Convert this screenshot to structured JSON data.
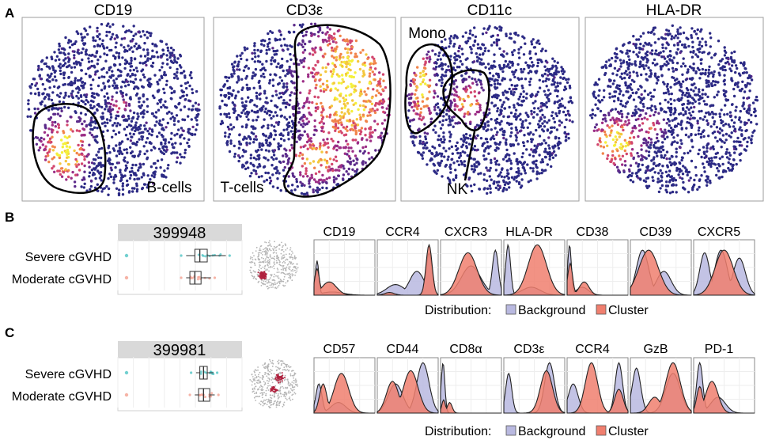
{
  "panels": {
    "A": {
      "letter": "A",
      "tsne": [
        {
          "marker": "CD19",
          "gate_labels": [
            "B-cells"
          ]
        },
        {
          "marker": "CD3ε",
          "gate_labels": [
            "T-cells"
          ]
        },
        {
          "marker": "CD11c",
          "gate_labels": [
            "Mono",
            "NK"
          ]
        },
        {
          "marker": "HLA-DR",
          "gate_labels": []
        }
      ]
    },
    "B": {
      "letter": "B",
      "cluster_id": "399948",
      "groups": [
        "Severe cGVHD",
        "Moderate cGVHD"
      ],
      "markers": [
        "CD19",
        "CCR4",
        "CXCR3",
        "HLA-DR",
        "CD38",
        "CD39",
        "CXCR5"
      ]
    },
    "C": {
      "letter": "C",
      "cluster_id": "399981",
      "groups": [
        "Severe cGVHD",
        "Moderate cGVHD"
      ],
      "markers": [
        "CD57",
        "CD44",
        "CD8α",
        "CD3ε",
        "CCR4",
        "GzB",
        "PD-1"
      ]
    }
  },
  "legend": {
    "title": "Distribution:",
    "items": [
      "Background",
      "Cluster"
    ]
  },
  "colors": {
    "background_fill": "#b9b9e0",
    "cluster_fill": "#f07f6f",
    "severe": "#4fc4c4",
    "moderate": "#f4a090",
    "low_expression": "#2c2a85",
    "high_expression": "#f4f03a"
  },
  "chart_data": [
    {
      "type": "area",
      "title": "399948",
      "panel": "B",
      "x_description": "relative marker expression (0 to 1)",
      "series": [
        {
          "name": "CD19",
          "background": [
            [
              0.05,
              0.65,
              0.03
            ],
            [
              0.3,
              0.06,
              0.18
            ]
          ],
          "cluster": [
            [
              0.05,
              0.5,
              0.04
            ],
            [
              0.25,
              0.25,
              0.12
            ]
          ]
        },
        {
          "name": "CCR4",
          "background": [
            [
              0.3,
              0.2,
              0.15
            ],
            [
              0.65,
              0.45,
              0.12
            ],
            [
              0.85,
              0.8,
              0.05
            ]
          ],
          "cluster": [
            [
              0.2,
              0.05,
              0.08
            ],
            [
              0.85,
              0.95,
              0.05
            ]
          ]
        },
        {
          "name": "CXCR3",
          "background": [
            [
              0.5,
              0.55,
              0.16
            ],
            [
              0.9,
              0.85,
              0.05
            ]
          ],
          "cluster": [
            [
              0.45,
              0.8,
              0.15
            ]
          ]
        },
        {
          "name": "HLA-DR",
          "background": [
            [
              0.07,
              0.95,
              0.04
            ],
            [
              0.45,
              0.15,
              0.15
            ]
          ],
          "cluster": [
            [
              0.55,
              0.95,
              0.15
            ]
          ]
        },
        {
          "name": "CD38",
          "background": [
            [
              0.04,
              0.95,
              0.03
            ],
            [
              0.25,
              0.15,
              0.1
            ]
          ],
          "cluster": [
            [
              0.05,
              0.6,
              0.04
            ],
            [
              0.28,
              0.25,
              0.08
            ]
          ]
        },
        {
          "name": "CD39",
          "background": [
            [
              0.2,
              0.85,
              0.1
            ],
            [
              0.55,
              0.45,
              0.12
            ]
          ],
          "cluster": [
            [
              0.3,
              0.85,
              0.16
            ]
          ]
        },
        {
          "name": "CXCR5",
          "background": [
            [
              0.18,
              0.8,
              0.08
            ],
            [
              0.45,
              0.85,
              0.1
            ],
            [
              0.75,
              0.7,
              0.1
            ]
          ],
          "cluster": [
            [
              0.5,
              0.85,
              0.15
            ]
          ]
        }
      ],
      "boxplot": {
        "Severe cGVHD": {
          "min": 0.55,
          "q1": 0.62,
          "median": 0.66,
          "q3": 0.72,
          "max": 0.87
        },
        "Moderate cGVHD": {
          "min": 0.55,
          "q1": 0.58,
          "median": 0.62,
          "q3": 0.67,
          "max": 0.75
        }
      }
    },
    {
      "type": "area",
      "title": "399981",
      "panel": "C",
      "x_description": "relative marker expression (0 to 1)",
      "series": [
        {
          "name": "CD57",
          "background": [
            [
              0.08,
              0.55,
              0.05
            ],
            [
              0.4,
              0.2,
              0.12
            ]
          ],
          "cluster": [
            [
              0.15,
              0.55,
              0.06
            ],
            [
              0.45,
              0.75,
              0.12
            ]
          ]
        },
        {
          "name": "CD44",
          "background": [
            [
              0.3,
              0.55,
              0.12
            ],
            [
              0.75,
              0.95,
              0.1
            ]
          ],
          "cluster": [
            [
              0.25,
              0.6,
              0.1
            ],
            [
              0.55,
              0.8,
              0.12
            ]
          ]
        },
        {
          "name": "CD8α",
          "background": [
            [
              0.04,
              0.95,
              0.03
            ]
          ],
          "cluster": [
            [
              0.05,
              0.25,
              0.03
            ],
            [
              0.15,
              0.2,
              0.04
            ]
          ]
        },
        {
          "name": "CD3ε",
          "background": [
            [
              0.08,
              0.75,
              0.05
            ],
            [
              0.75,
              0.95,
              0.08
            ]
          ],
          "cluster": [
            [
              0.7,
              0.8,
              0.1
            ]
          ]
        },
        {
          "name": "CCR4",
          "background": [
            [
              0.1,
              0.55,
              0.08
            ],
            [
              0.85,
              0.95,
              0.06
            ]
          ],
          "cluster": [
            [
              0.4,
              0.95,
              0.1
            ],
            [
              0.85,
              0.45,
              0.07
            ]
          ]
        },
        {
          "name": "GzB",
          "background": [
            [
              0.1,
              0.85,
              0.07
            ],
            [
              0.7,
              0.75,
              0.12
            ]
          ],
          "cluster": [
            [
              0.4,
              0.3,
              0.1
            ],
            [
              0.7,
              0.95,
              0.12
            ]
          ]
        },
        {
          "name": "PD-1",
          "background": [
            [
              0.1,
              0.95,
              0.05
            ],
            [
              0.4,
              0.3,
              0.12
            ]
          ],
          "cluster": [
            [
              0.1,
              0.5,
              0.05
            ],
            [
              0.3,
              0.6,
              0.1
            ]
          ]
        }
      ],
      "boxplot": {
        "Severe cGVHD": {
          "min": 0.63,
          "q1": 0.66,
          "median": 0.69,
          "q3": 0.72,
          "max": 0.77
        },
        "Moderate cGVHD": {
          "min": 0.62,
          "q1": 0.65,
          "median": 0.69,
          "q3": 0.74,
          "max": 0.78
        }
      }
    }
  ]
}
